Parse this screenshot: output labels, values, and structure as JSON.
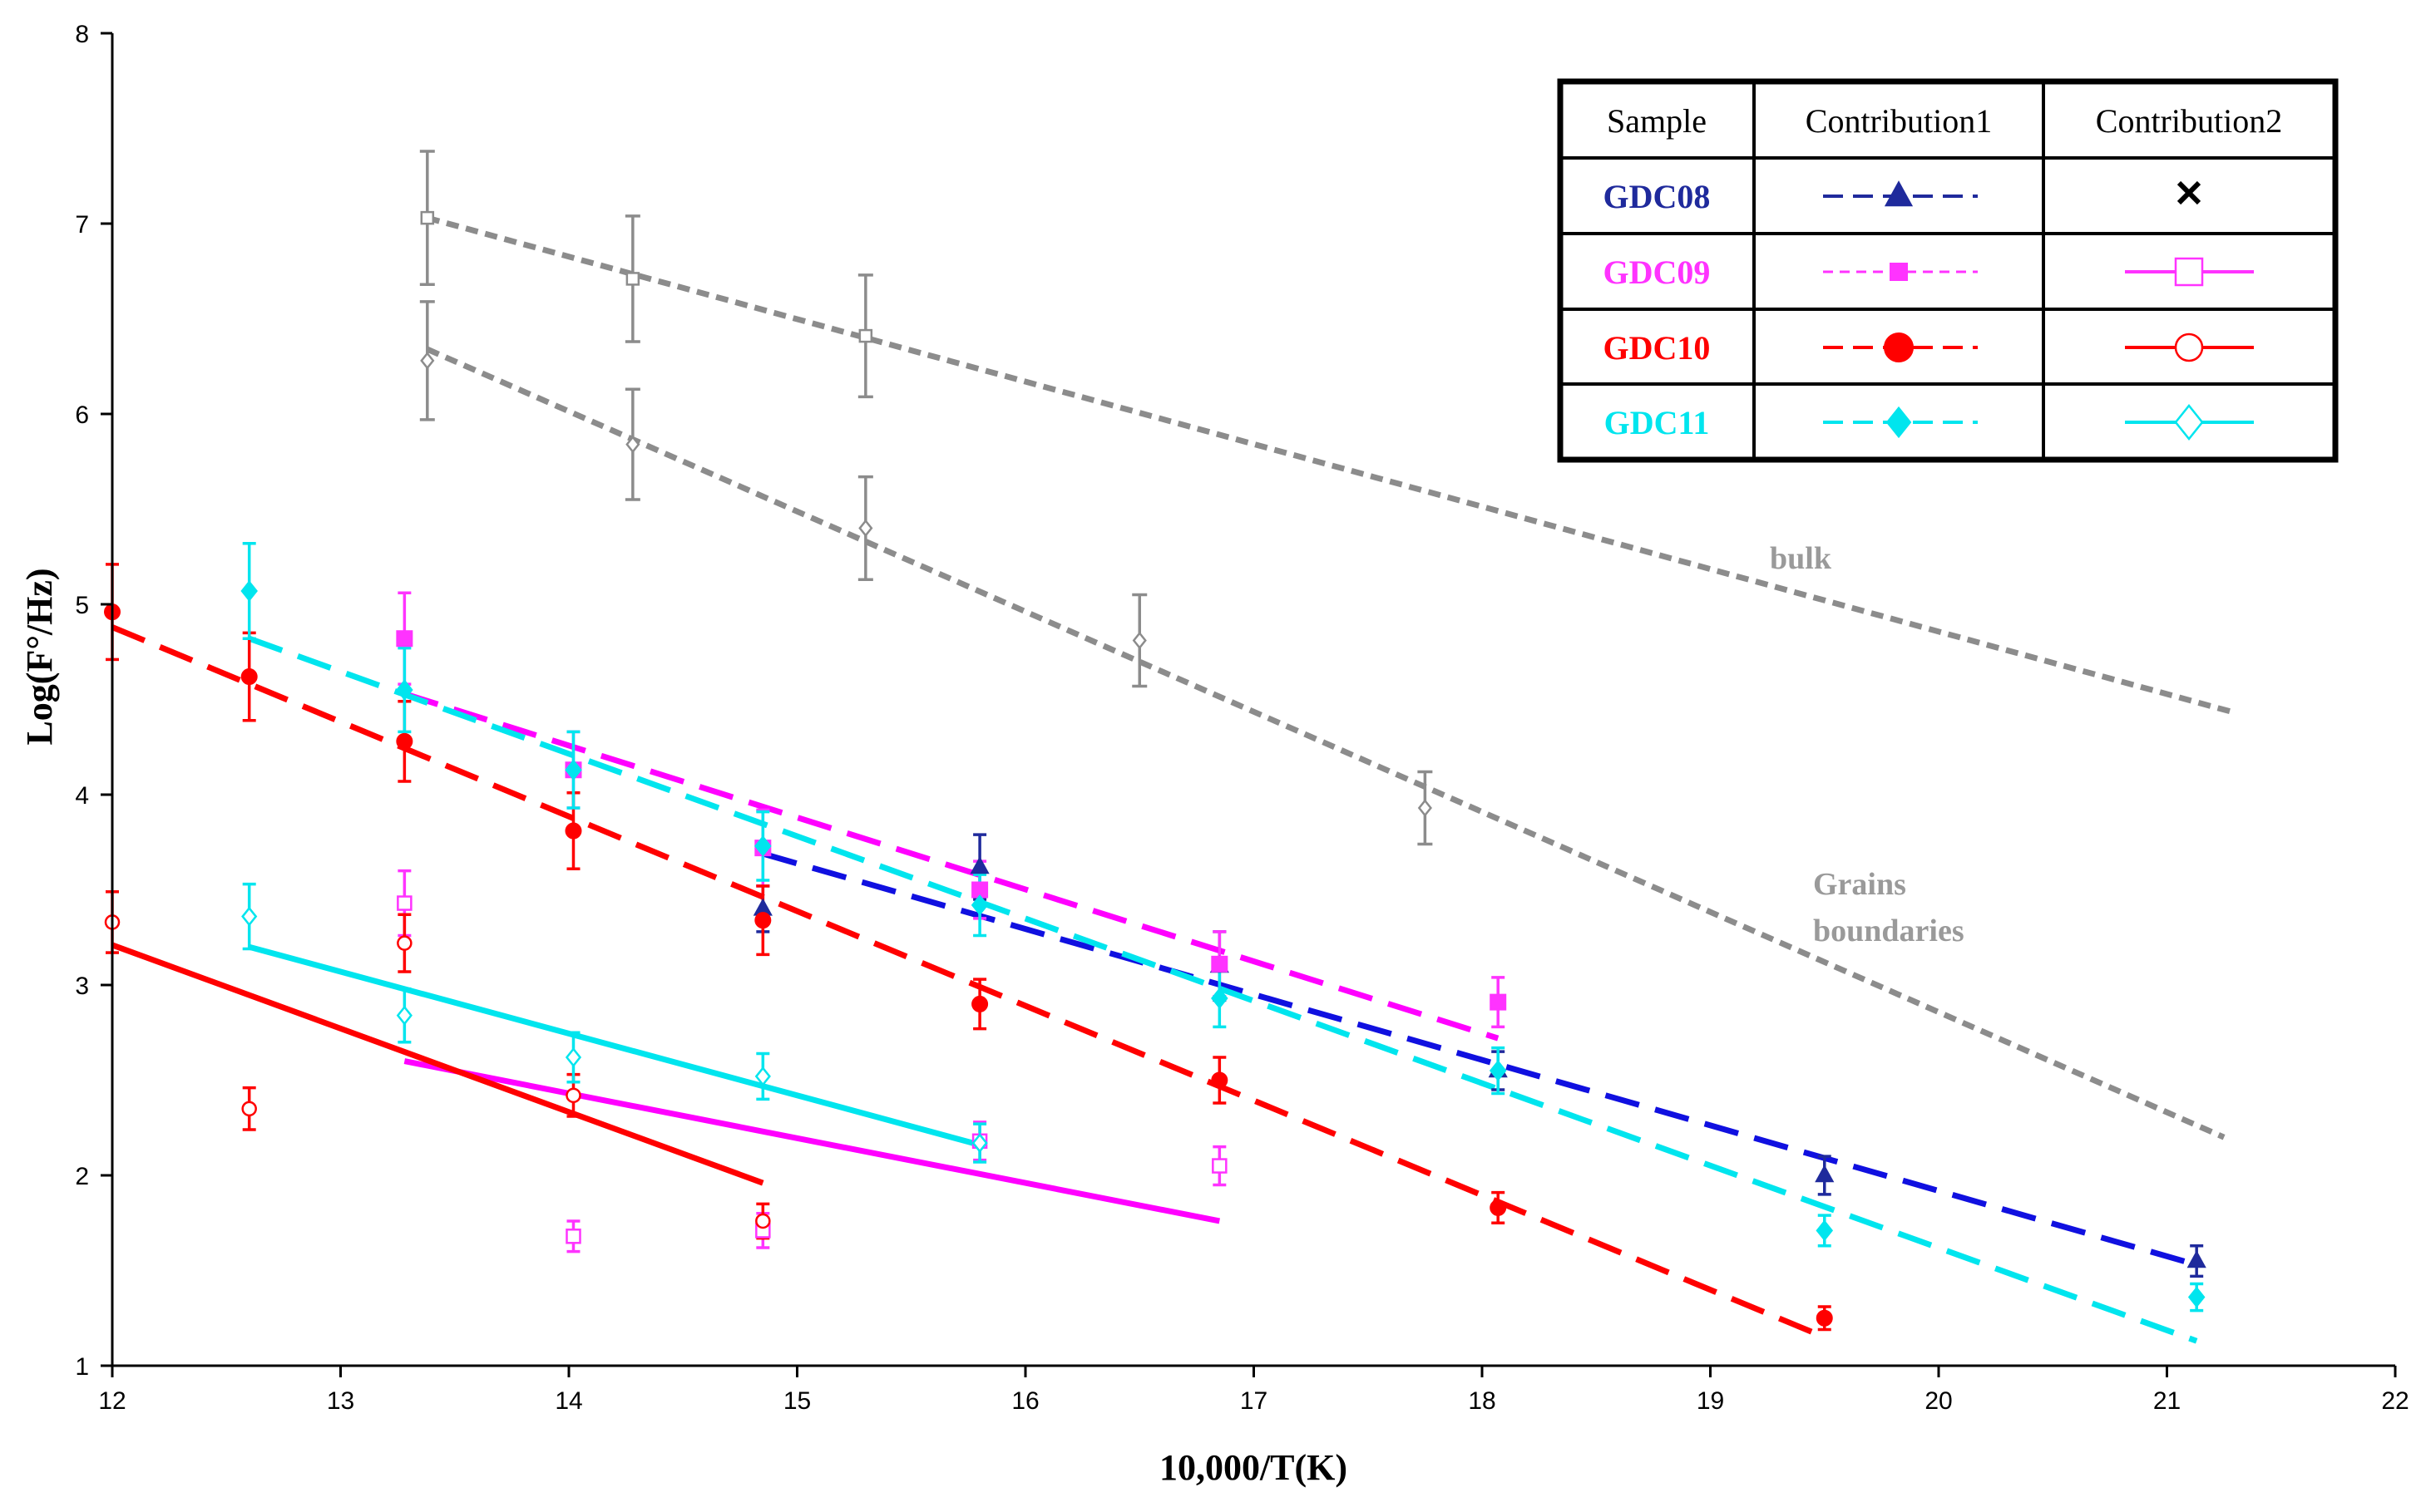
{
  "chart_data": {
    "type": "scatter",
    "title": "",
    "xlabel": "10,000/T(K)",
    "ylabel": "Log(F°/Hz)",
    "xlim": [
      12,
      22
    ],
    "ylim": [
      1,
      8
    ],
    "x_ticks": [
      12,
      13,
      14,
      15,
      16,
      17,
      18,
      19,
      20,
      21,
      22
    ],
    "y_ticks": [
      1,
      2,
      3,
      4,
      5,
      6,
      7,
      8
    ],
    "grid": false,
    "legend_position": "top-right",
    "legend": {
      "headers": [
        "Sample",
        "Contribution1",
        "Contribution2"
      ],
      "rows": [
        {
          "sample": "GDC08",
          "color": "#1f2a9c",
          "c1_marker": "triangle",
          "c1_line": "dashed",
          "c2_marker": "cross",
          "c2_line": "none"
        },
        {
          "sample": "GDC09",
          "color": "#ff33ff",
          "c1_marker": "square-filled",
          "c1_line": "dashed",
          "c2_marker": "square-open",
          "c2_line": "solid"
        },
        {
          "sample": "GDC10",
          "color": "#ff0000",
          "c1_marker": "circle-filled",
          "c1_line": "dashed",
          "c2_marker": "circle-open",
          "c2_line": "solid"
        },
        {
          "sample": "GDC11",
          "color": "#00e5ee",
          "c1_marker": "diamond-filled",
          "c1_line": "dashed",
          "c2_marker": "diamond-open",
          "c2_line": "solid"
        }
      ]
    },
    "annotations": [
      "bulk",
      "Grains",
      "boundaries"
    ],
    "series": [
      {
        "name": "GDC08 Contribution1",
        "color": "#1f2a9c",
        "marker": "triangle",
        "filled": true,
        "points": [
          [
            14.85,
            3.4,
            0.12
          ],
          [
            15.8,
            3.62,
            0.17
          ],
          [
            16.85,
            3.1,
            0.18
          ],
          [
            18.07,
            2.55,
            0.1
          ],
          [
            19.5,
            2.0,
            0.1
          ],
          [
            21.13,
            1.55,
            0.08
          ]
        ]
      },
      {
        "name": "GDC09 Contribution1",
        "color": "#ff33ff",
        "marker": "square",
        "filled": true,
        "points": [
          [
            13.28,
            4.82,
            0.24
          ],
          [
            14.02,
            4.13,
            0.2
          ],
          [
            14.85,
            3.72,
            0.2
          ],
          [
            15.8,
            3.5,
            0.15
          ],
          [
            16.85,
            3.11,
            0.17
          ],
          [
            18.07,
            2.91,
            0.13
          ]
        ]
      },
      {
        "name": "GDC10 Contribution1",
        "color": "#ff0000",
        "marker": "circle",
        "filled": true,
        "points": [
          [
            12.0,
            4.96,
            0.25
          ],
          [
            12.6,
            4.62,
            0.23
          ],
          [
            13.28,
            4.28,
            0.21
          ],
          [
            14.02,
            3.81,
            0.2
          ],
          [
            14.85,
            3.34,
            0.18
          ],
          [
            15.8,
            2.9,
            0.13
          ],
          [
            16.85,
            2.5,
            0.12
          ],
          [
            18.07,
            1.83,
            0.08
          ],
          [
            19.5,
            1.25,
            0.06
          ]
        ]
      },
      {
        "name": "GDC11 Contribution1",
        "color": "#00e5ee",
        "marker": "diamond",
        "filled": true,
        "points": [
          [
            12.6,
            5.07,
            0.25
          ],
          [
            13.28,
            4.55,
            0.22
          ],
          [
            14.02,
            4.13,
            0.2
          ],
          [
            14.85,
            3.73,
            0.18
          ],
          [
            15.8,
            3.42,
            0.16
          ],
          [
            16.85,
            2.93,
            0.15
          ],
          [
            18.07,
            2.55,
            0.12
          ],
          [
            19.5,
            1.71,
            0.08
          ],
          [
            21.13,
            1.36,
            0.07
          ]
        ]
      },
      {
        "name": "GDC09 Contribution2",
        "color": "#ff33ff",
        "marker": "square",
        "filled": false,
        "points": [
          [
            13.28,
            3.43,
            0.17
          ],
          [
            14.02,
            1.68,
            0.08
          ],
          [
            14.85,
            1.71,
            0.09
          ],
          [
            15.8,
            2.18,
            0.1
          ],
          [
            16.85,
            2.05,
            0.1
          ]
        ]
      },
      {
        "name": "GDC10 Contribution2",
        "color": "#ff0000",
        "marker": "circle",
        "filled": false,
        "points": [
          [
            12.0,
            3.33,
            0.16
          ],
          [
            12.6,
            2.35,
            0.11
          ],
          [
            13.28,
            3.22,
            0.15
          ],
          [
            14.02,
            2.42,
            0.11
          ],
          [
            14.85,
            1.76,
            0.09
          ]
        ]
      },
      {
        "name": "GDC11 Contribution2",
        "color": "#00e5ee",
        "marker": "diamond",
        "filled": false,
        "points": [
          [
            12.6,
            3.36,
            0.17
          ],
          [
            13.28,
            2.84,
            0.14
          ],
          [
            14.02,
            2.62,
            0.13
          ],
          [
            14.85,
            2.52,
            0.12
          ],
          [
            15.8,
            2.17,
            0.1
          ]
        ]
      },
      {
        "name": "bulk",
        "color": "#8c8c8c",
        "marker": "square",
        "filled": false,
        "points": [
          [
            13.38,
            7.03,
            0.35
          ],
          [
            14.28,
            6.71,
            0.33
          ],
          [
            15.3,
            6.41,
            0.32
          ]
        ]
      },
      {
        "name": "Grains boundaries",
        "color": "#8c8c8c",
        "marker": "diamond",
        "filled": false,
        "points": [
          [
            13.38,
            6.28,
            0.31
          ],
          [
            14.28,
            5.84,
            0.29
          ],
          [
            15.3,
            5.4,
            0.27
          ],
          [
            16.5,
            4.81,
            0.24
          ],
          [
            17.75,
            3.93,
            0.19
          ]
        ]
      }
    ],
    "fit_lines": [
      {
        "name": "bulk fit",
        "color": "#8c8c8c",
        "style": "dotted",
        "x": [
          13.38,
          21.3
        ],
        "y": [
          7.03,
          4.43
        ]
      },
      {
        "name": "grain boundaries fit",
        "color": "#8c8c8c",
        "style": "dotted",
        "x": [
          13.38,
          21.25
        ],
        "y": [
          6.34,
          2.2
        ]
      },
      {
        "name": "GDC08 C1 fit",
        "color": "#1010e0",
        "style": "dashed",
        "x": [
          14.85,
          21.13
        ],
        "y": [
          3.69,
          1.53
        ]
      },
      {
        "name": "GDC09 C1 fit",
        "color": "#ff00ff",
        "style": "dashed",
        "x": [
          13.28,
          18.07
        ],
        "y": [
          4.53,
          2.72
        ]
      },
      {
        "name": "GDC10 C1 fit",
        "color": "#ff0000",
        "style": "dashed",
        "x": [
          12.0,
          19.5
        ],
        "y": [
          4.88,
          1.15
        ]
      },
      {
        "name": "GDC11 C1 fit",
        "color": "#00e5ee",
        "style": "dashed",
        "x": [
          12.6,
          21.13
        ],
        "y": [
          4.82,
          1.13
        ]
      },
      {
        "name": "GDC09 C2 fit",
        "color": "#ff00ff",
        "style": "solid",
        "x": [
          13.28,
          16.85
        ],
        "y": [
          2.6,
          1.76
        ]
      },
      {
        "name": "GDC10 C2 fit",
        "color": "#ff0000",
        "style": "solid",
        "x": [
          12.0,
          14.85
        ],
        "y": [
          3.21,
          1.96
        ]
      },
      {
        "name": "GDC11 C2 fit",
        "color": "#00e5ee",
        "style": "solid",
        "x": [
          12.6,
          15.8
        ],
        "y": [
          3.2,
          2.16
        ]
      }
    ]
  }
}
